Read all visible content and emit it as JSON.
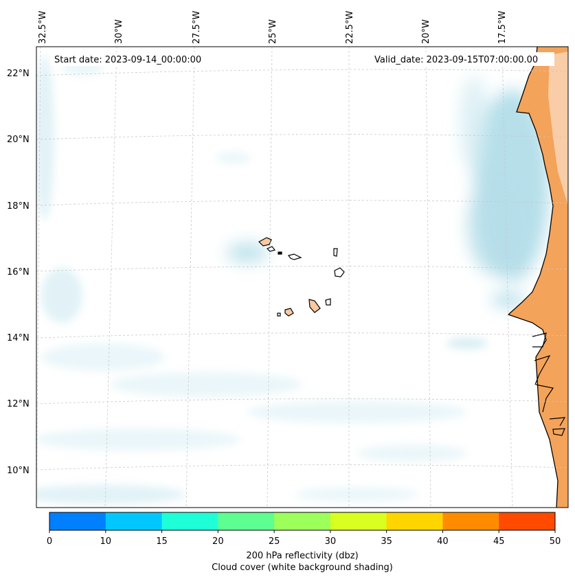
{
  "map": {
    "start_date_label": "Start date: 2023-09-14_00:00:00",
    "valid_date_label": "Valid_date: 2023-09-15T07:00:00.00",
    "longitude_ticks": [
      "32.5°W",
      "30°W",
      "27.5°W",
      "25°W",
      "22.5°W",
      "20°W",
      "17.5°W"
    ],
    "latitude_ticks": [
      "22°N",
      "20°N",
      "18°N",
      "16°N",
      "14°N",
      "12°N",
      "10°N"
    ],
    "region": "Cape Verde Islands and West African coast",
    "colors": {
      "land": "#f4a35a",
      "land_light": "#f9c9a0",
      "cloud": "#a9d9e6",
      "cloud_light": "#d7eef4",
      "gridline": "#c8c8c8",
      "coastline": "#000000"
    }
  },
  "colorbar": {
    "ticks": [
      "0",
      "10",
      "15",
      "20",
      "25",
      "30",
      "35",
      "40",
      "45",
      "50"
    ],
    "colors": [
      "#0080ff",
      "#00c8ff",
      "#1effd8",
      "#5cff90",
      "#9cff5a",
      "#d8ff20",
      "#ffd500",
      "#ff8c00",
      "#ff4a00"
    ],
    "label_line1": "200 hPa reflectivity (dbz)",
    "label_line2": "Cloud cover (white background shading)"
  }
}
